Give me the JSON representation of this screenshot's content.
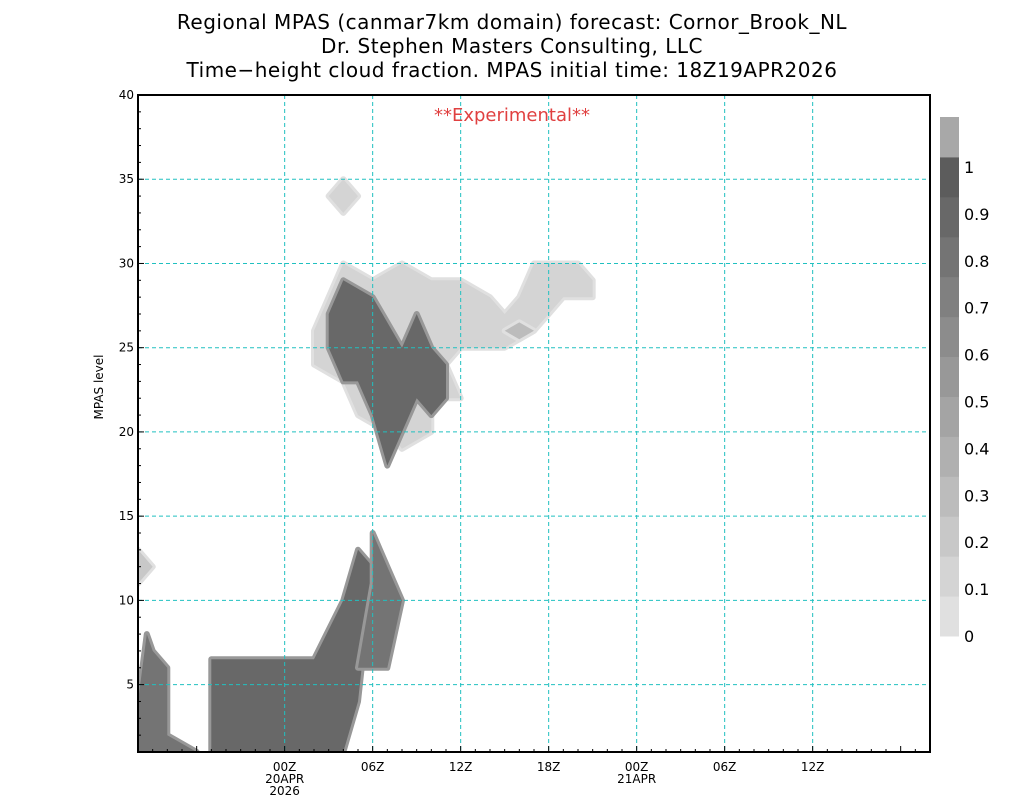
{
  "title": {
    "line1": "Regional MPAS (canmar7km domain) forecast: Cornor_Brook_NL",
    "line2": "Dr. Stephen Masters Consulting, LLC",
    "line3": "Time−height cloud fraction.    MPAS initial time: 18Z19APR2026"
  },
  "annotation": "**Experimental**",
  "colors": {
    "annotation": "#e04040",
    "grid": "#20c0c0",
    "frame": "#000000"
  },
  "chart_data": {
    "type": "heatmap",
    "ylabel": "MPAS level",
    "ylim": [
      1,
      40
    ],
    "yticks": [
      5,
      10,
      15,
      20,
      25,
      30,
      35,
      40
    ],
    "xlim_hours_after_init": [
      -4,
      50
    ],
    "xticks": [
      {
        "hour": 6,
        "label": "00Z",
        "sub1": "20APR",
        "sub2": "2026"
      },
      {
        "hour": 12,
        "label": "06Z",
        "sub1": "",
        "sub2": ""
      },
      {
        "hour": 18,
        "label": "12Z",
        "sub1": "",
        "sub2": ""
      },
      {
        "hour": 24,
        "label": "18Z",
        "sub1": "",
        "sub2": ""
      },
      {
        "hour": 30,
        "label": "00Z",
        "sub1": "21APR",
        "sub2": ""
      },
      {
        "hour": 36,
        "label": "06Z",
        "sub1": "",
        "sub2": ""
      },
      {
        "hour": 42,
        "label": "12Z",
        "sub1": "",
        "sub2": ""
      }
    ],
    "colorbar_levels": [
      "0",
      "0.1",
      "0.2",
      "0.3",
      "0.4",
      "0.5",
      "0.6",
      "0.7",
      "0.8",
      "0.9",
      "1"
    ],
    "colorbar_colors": [
      "#e0e0e0",
      "#d4d4d4",
      "#c8c8c8",
      "#bcbcbc",
      "#b0b0b0",
      "#a4a4a4",
      "#989898",
      "#8c8c8c",
      "#808080",
      "#747474",
      "#686868",
      "#5c5c5c",
      "#a8a8a8"
    ],
    "cloud_regions": [
      {
        "fraction": 0.2,
        "points": [
          [
            -4,
            13
          ],
          [
            -3,
            12
          ],
          [
            -4,
            11
          ]
        ]
      },
      {
        "fraction": 0.9,
        "points": [
          [
            -4,
            4
          ],
          [
            -3.4,
            8
          ],
          [
            -3,
            7
          ],
          [
            -2,
            6
          ],
          [
            -2,
            2
          ],
          [
            0,
            1
          ],
          [
            -4,
            1
          ]
        ]
      },
      {
        "fraction": 0.95,
        "points": [
          [
            1,
            1
          ],
          [
            1,
            6.5
          ],
          [
            8,
            6.5
          ],
          [
            10,
            10
          ],
          [
            11,
            13
          ],
          [
            12,
            12
          ],
          [
            11,
            4
          ],
          [
            10,
            1
          ]
        ]
      },
      {
        "fraction": 0.9,
        "points": [
          [
            12,
            11
          ],
          [
            12,
            14
          ],
          [
            13,
            12
          ],
          [
            14,
            10
          ],
          [
            13,
            6
          ],
          [
            11,
            6
          ]
        ]
      },
      {
        "fraction": 0.1,
        "points": [
          [
            8,
            26
          ],
          [
            10,
            30
          ],
          [
            12,
            29
          ],
          [
            14,
            30
          ],
          [
            16,
            29
          ],
          [
            18,
            29
          ],
          [
            20,
            28
          ],
          [
            21,
            27
          ],
          [
            22,
            28
          ],
          [
            23,
            30
          ],
          [
            24,
            30
          ],
          [
            26,
            30
          ],
          [
            27,
            29
          ],
          [
            27,
            28
          ],
          [
            25,
            28
          ],
          [
            24,
            27
          ],
          [
            23,
            26
          ],
          [
            21,
            25
          ],
          [
            18,
            25
          ],
          [
            17,
            24
          ],
          [
            18,
            22
          ],
          [
            16,
            22
          ],
          [
            16,
            20
          ],
          [
            14,
            19
          ],
          [
            13,
            20
          ],
          [
            11,
            21
          ],
          [
            10,
            23
          ],
          [
            8,
            24
          ]
        ]
      },
      {
        "fraction": 0.95,
        "points": [
          [
            9,
            27
          ],
          [
            10,
            29
          ],
          [
            12,
            28
          ],
          [
            14,
            25
          ],
          [
            15,
            27
          ],
          [
            16,
            25
          ],
          [
            17,
            24
          ],
          [
            17,
            22
          ],
          [
            16,
            21
          ],
          [
            15,
            22
          ],
          [
            14,
            20
          ],
          [
            13,
            18
          ],
          [
            12,
            21
          ],
          [
            11,
            23
          ],
          [
            10,
            23
          ],
          [
            9,
            25
          ]
        ]
      },
      {
        "fraction": 0.1,
        "points": [
          [
            10,
            35
          ],
          [
            11,
            34
          ],
          [
            10,
            33
          ],
          [
            9,
            34
          ]
        ]
      },
      {
        "fraction": 0.3,
        "points": [
          [
            22,
            26.5
          ],
          [
            23,
            26
          ],
          [
            22,
            25.5
          ],
          [
            21,
            26
          ]
        ]
      }
    ]
  }
}
